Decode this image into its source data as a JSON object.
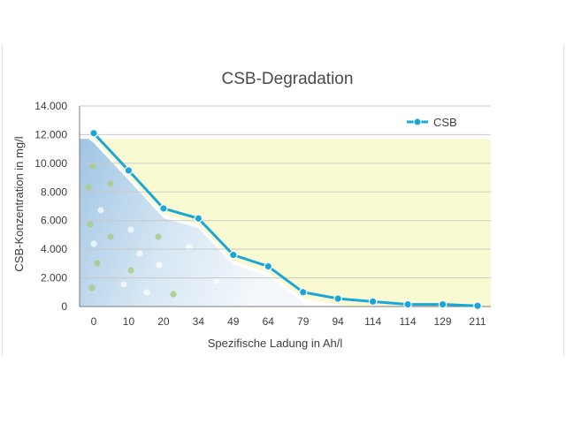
{
  "chart_data": {
    "type": "line",
    "title": "CSB-Degradation",
    "xlabel": "Spezifische Ladung in Ah/l",
    "ylabel": "CSB-Konzentration in mg/l",
    "categories": [
      "0",
      "10",
      "20",
      "34",
      "49",
      "64",
      "79",
      "94",
      "114",
      "114",
      "129",
      "211"
    ],
    "series": [
      {
        "name": "CSB",
        "values": [
          12100,
          9500,
          6850,
          6150,
          3600,
          2800,
          1000,
          550,
          350,
          150,
          150,
          50
        ]
      }
    ],
    "yticks": [
      "0",
      "2.000",
      "4.000",
      "6.000",
      "8.000",
      "10.000",
      "12.000",
      "14.000"
    ],
    "ylim": [
      0,
      14000
    ],
    "grid": true,
    "legend": "top-right",
    "colors": {
      "line": "#1aa7d8",
      "marker_fill": "#1aa7d8",
      "yellow_fill": "#fafad2",
      "blue_dark": "#a9cbe6",
      "grid": "#c9c9c9",
      "axis": "#7a7a7a"
    }
  }
}
